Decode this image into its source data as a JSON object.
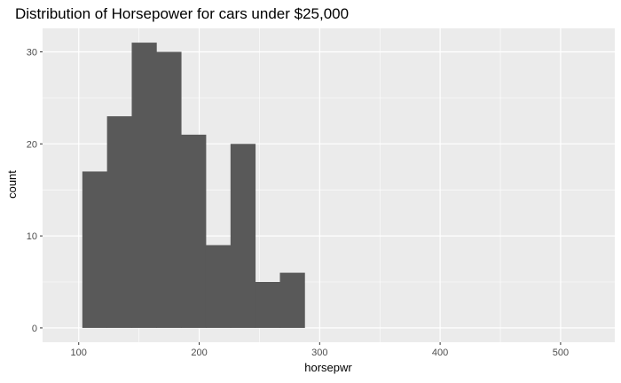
{
  "chart_data": {
    "type": "bar",
    "title": "Distribution of Horsepower for cars under $25,000",
    "xlabel": "horsepwr",
    "ylabel": "count",
    "bin_width": 20.5,
    "bins": [
      {
        "x0": 103,
        "x1": 123.5,
        "count": 17
      },
      {
        "x0": 123.5,
        "x1": 144,
        "count": 23
      },
      {
        "x0": 144,
        "x1": 164.5,
        "count": 31
      },
      {
        "x0": 164.5,
        "x1": 185,
        "count": 30
      },
      {
        "x0": 185,
        "x1": 205.5,
        "count": 21
      },
      {
        "x0": 205.5,
        "x1": 226,
        "count": 9
      },
      {
        "x0": 226,
        "x1": 246.5,
        "count": 20
      },
      {
        "x0": 246.5,
        "x1": 267,
        "count": 5
      },
      {
        "x0": 267,
        "x1": 287.5,
        "count": 6
      }
    ],
    "xlim": [
      70,
      545
    ],
    "ylim": [
      -1.55,
      32.55
    ],
    "x_ticks": [
      100,
      200,
      300,
      400,
      500
    ],
    "x_tick_labels": [
      "100",
      "200",
      "300",
      "400",
      "500"
    ],
    "x_minor_ticks": [
      150,
      250,
      350,
      450
    ],
    "y_ticks": [
      0,
      10,
      20,
      30
    ],
    "y_tick_labels": [
      "0",
      "10",
      "20",
      "30"
    ],
    "y_minor_ticks": [
      5,
      15,
      25
    ],
    "grid": true,
    "legend": "none",
    "colors": {
      "bar": "#595959",
      "panel": "#ebebeb",
      "grid": "#ffffff",
      "text": "#4d4d4d"
    }
  }
}
